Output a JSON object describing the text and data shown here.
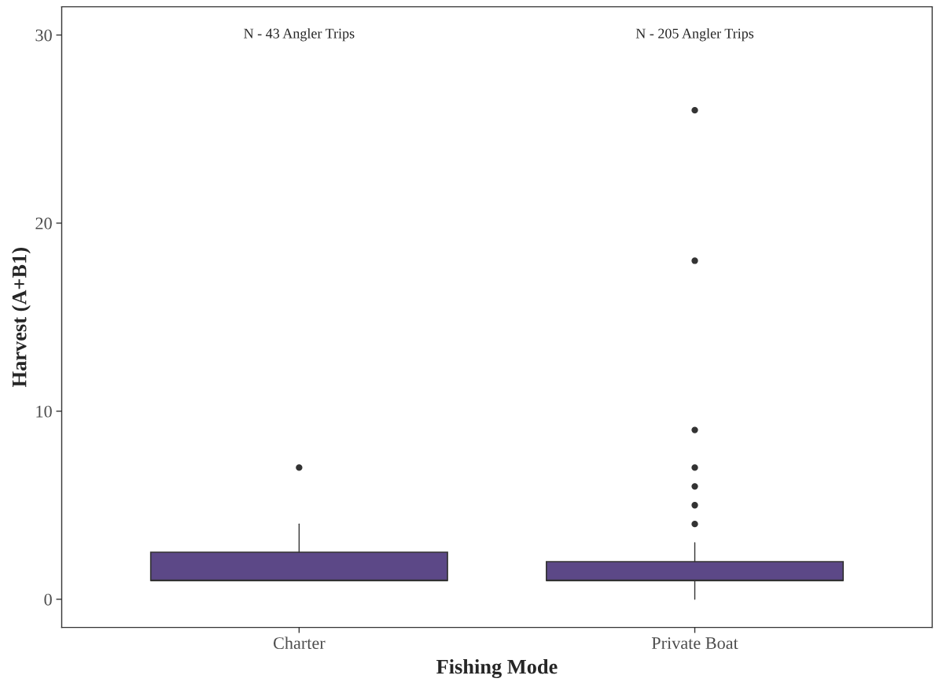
{
  "chart_data": {
    "type": "box",
    "xlabel": "Fishing Mode",
    "ylabel": "Harvest (A+B1)",
    "categories": [
      "Charter",
      "Private Boat"
    ],
    "boxes": [
      {
        "low": 1,
        "q1": 1,
        "median": 1,
        "q3": 2.5,
        "high": 4,
        "outliers": [
          7
        ]
      },
      {
        "low": 0,
        "q1": 1,
        "median": 1,
        "q3": 2,
        "high": 3,
        "outliers": [
          4,
          5,
          6,
          7,
          9,
          18,
          26
        ]
      }
    ],
    "color": "#5c4887",
    "ylim": [
      -1.5,
      31.5
    ],
    "yticks": [
      0,
      10,
      20,
      30
    ],
    "grid": false,
    "annotations": [
      "N - 43 Angler Trips",
      "N - 205 Angler Trips"
    ]
  }
}
